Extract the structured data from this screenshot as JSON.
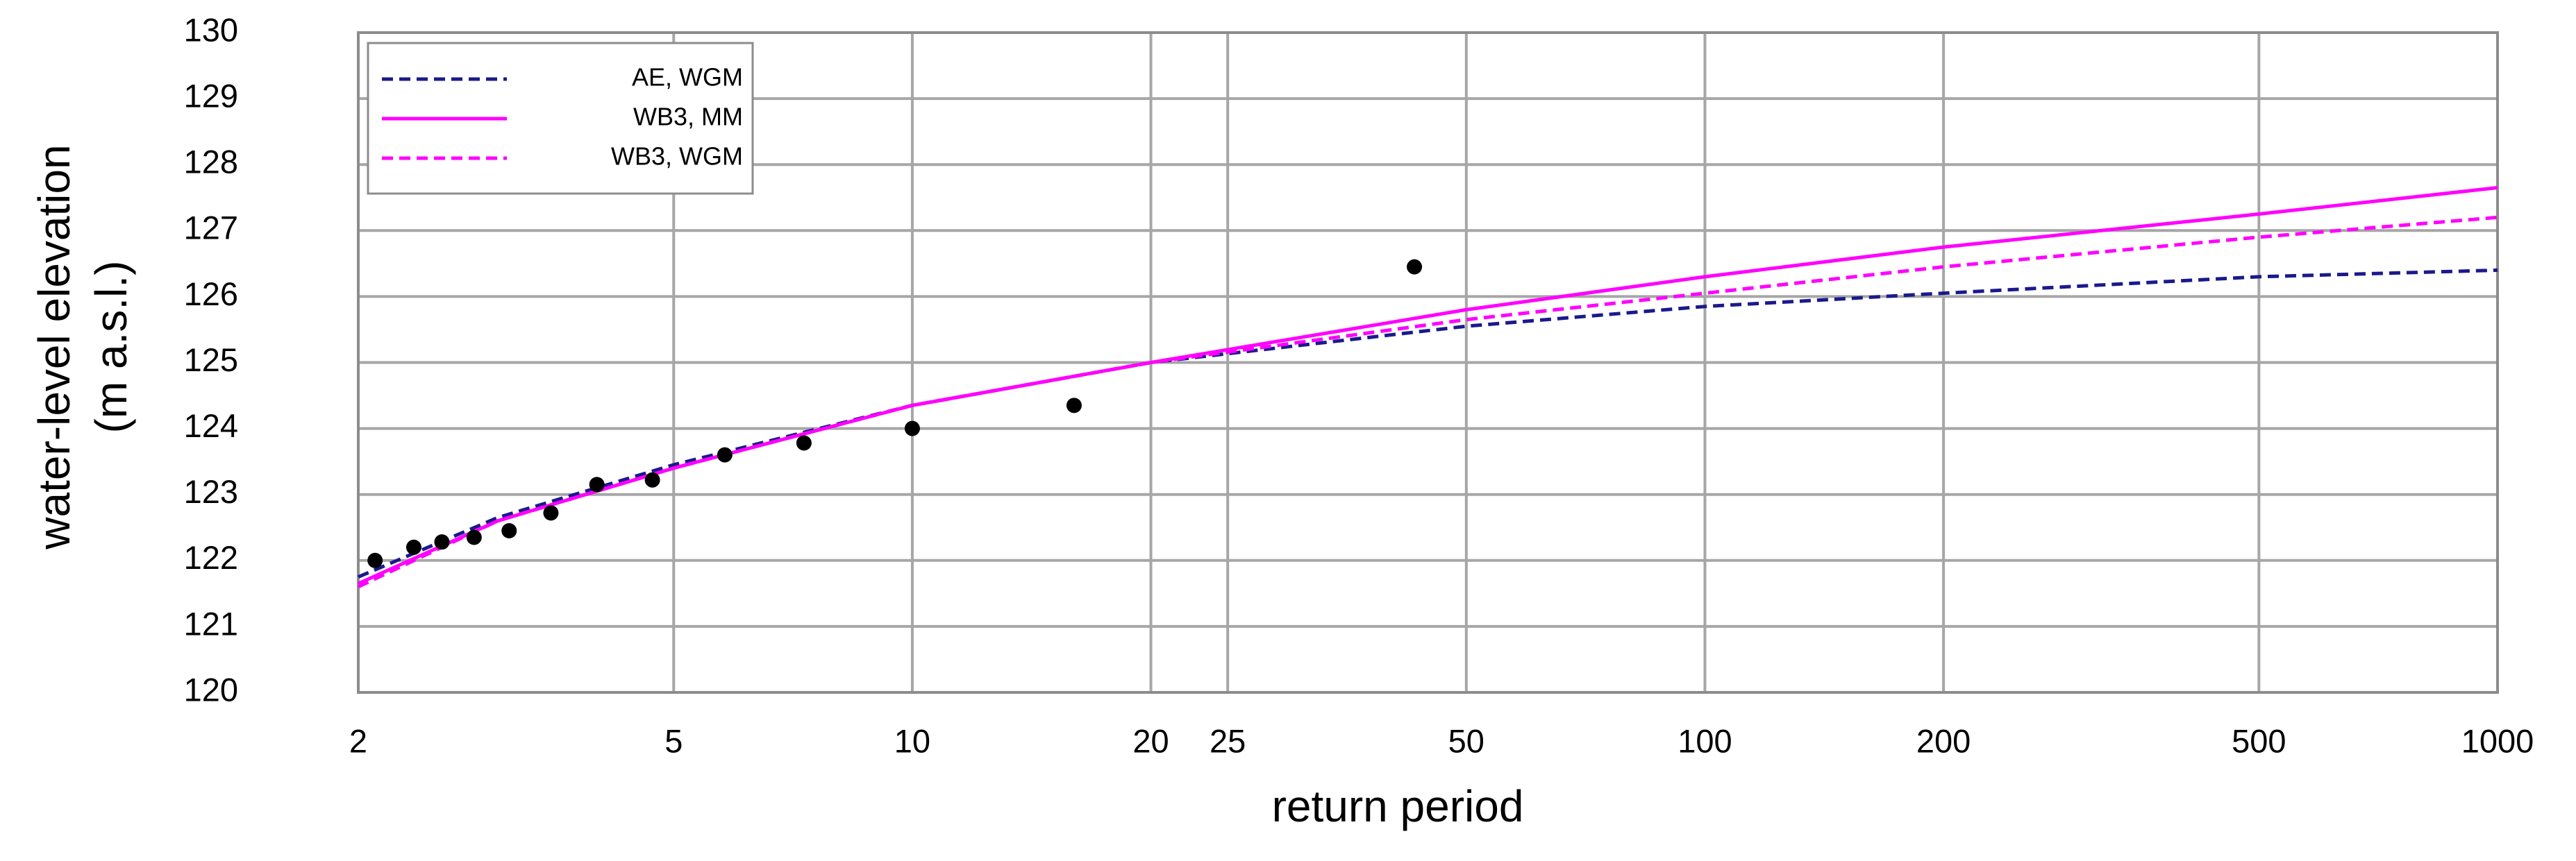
{
  "chart_data": {
    "type": "line",
    "xlabel": "return period",
    "ylabel": [
      "water-level elevation",
      "(m a.s.l.)"
    ],
    "xscale": "log",
    "xlim": [
      2,
      1000
    ],
    "xticks": [
      2,
      5,
      10,
      20,
      25,
      50,
      100,
      200,
      500,
      1000
    ],
    "ylim": [
      120,
      130
    ],
    "yticks": [
      120,
      121,
      122,
      123,
      124,
      125,
      126,
      127,
      128,
      129,
      130
    ],
    "grid": true,
    "legend": "upper left",
    "x": [
      2,
      3,
      5,
      10,
      20,
      50,
      100,
      200,
      500,
      1000
    ],
    "series": [
      {
        "name": "AE, WGM",
        "color": "#1a1a8c",
        "linestyle": "dashed",
        "values": [
          121.75,
          122.65,
          123.45,
          124.35,
          125.0,
          125.55,
          125.85,
          126.05,
          126.3,
          126.4
        ]
      },
      {
        "name": "WB3, MM",
        "color": "#ff00ff",
        "linestyle": "solid",
        "values": [
          121.65,
          122.6,
          123.4,
          124.35,
          125.0,
          125.8,
          126.3,
          126.75,
          127.25,
          127.65
        ]
      },
      {
        "name": "WB3, WGM",
        "color": "#ff00ff",
        "linestyle": "dashed",
        "values": [
          121.6,
          122.6,
          123.4,
          124.35,
          125.0,
          125.65,
          126.05,
          126.45,
          126.9,
          127.2
        ]
      }
    ],
    "points": {
      "color": "#000000",
      "x": [
        2.1,
        2.35,
        2.55,
        2.8,
        3.1,
        3.5,
        4.0,
        4.7,
        5.8,
        7.3,
        10,
        16,
        43
      ],
      "y": [
        122.0,
        122.2,
        122.28,
        122.35,
        122.45,
        122.72,
        123.15,
        123.22,
        123.6,
        123.78,
        124.0,
        124.35,
        126.45
      ]
    }
  }
}
